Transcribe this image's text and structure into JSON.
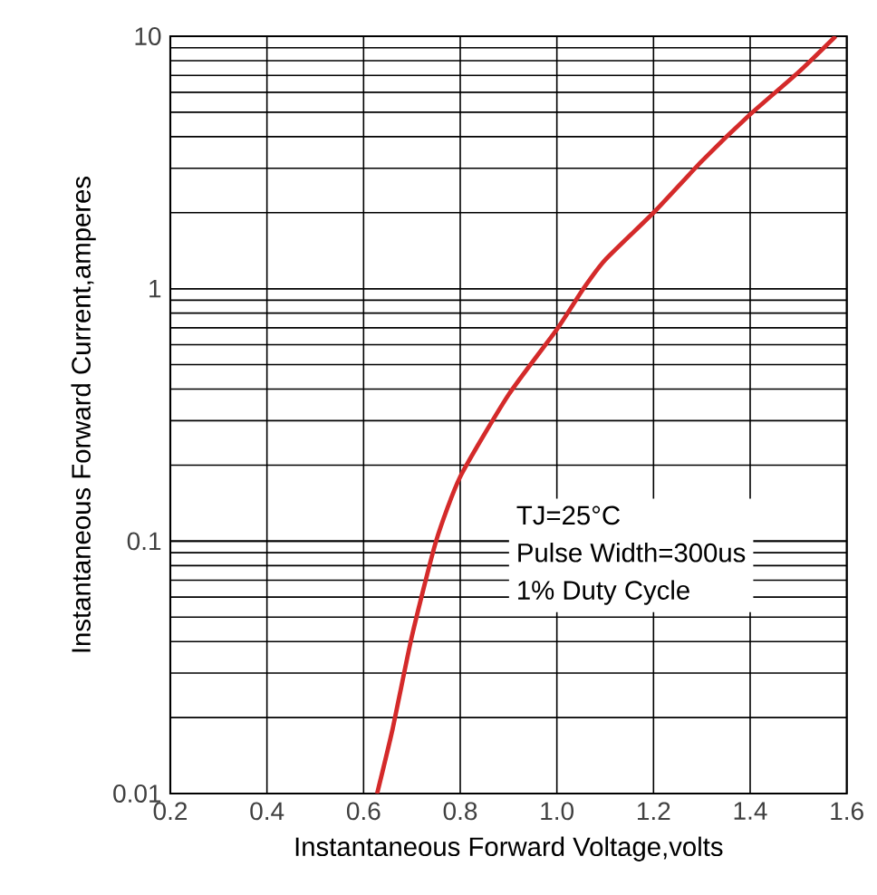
{
  "chart_data": {
    "type": "line",
    "xlabel": "Instantaneous Forward Voltage,volts",
    "ylabel": "Instantaneous Forward Current,amperes",
    "x": [
      0.628,
      0.66,
      0.7,
      0.75,
      0.8,
      0.9,
      1.0,
      1.055,
      1.1,
      1.2,
      1.3,
      1.4,
      1.5,
      1.577
    ],
    "series": [
      {
        "color": "#d42a2a",
        "values": [
          0.01,
          0.018,
          0.042,
          0.1,
          0.18,
          0.38,
          0.69,
          1.0,
          1.3,
          2.0,
          3.2,
          4.9,
          7.2,
          10
        ]
      }
    ],
    "xlim": [
      0.2,
      1.6
    ],
    "ylim": [
      0.01,
      10
    ],
    "xticks": [
      0.2,
      0.4,
      0.6,
      0.8,
      {
        "value": 1.0,
        "label": "1.0"
      },
      1.2,
      1.4,
      1.6
    ],
    "yticks": [
      0.01,
      0.1,
      1,
      10
    ],
    "log": "y",
    "grid": true,
    "marker": "none",
    "line_style": "solid",
    "annotations": [
      "TJ=25°C",
      "Pulse Width=300us",
      "1% Duty Cycle"
    ]
  }
}
